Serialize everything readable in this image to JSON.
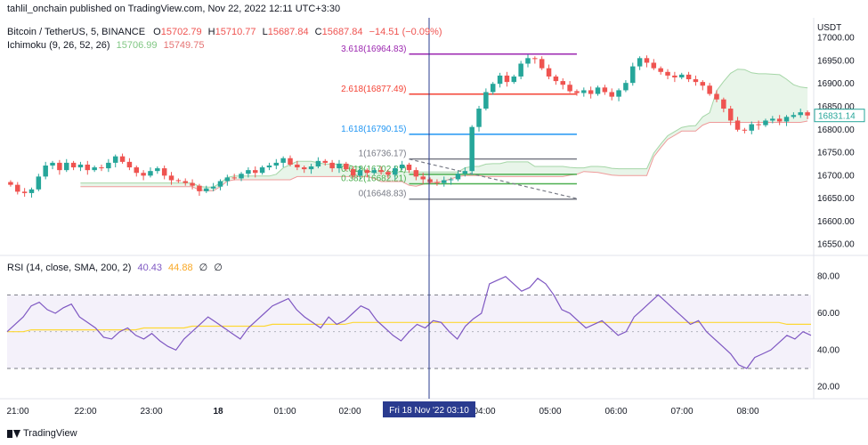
{
  "header": {
    "publisher": "tahlil_onchain published on TradingView.com, Nov 22, 2022 12:11 UTC+3:30",
    "symbol": "Bitcoin / TetherUS, 5, BINANCE",
    "o_label": "O",
    "o": "15702.79",
    "h_label": "H",
    "h": "15710.77",
    "l_label": "L",
    "l": "15687.84",
    "c_label": "C",
    "c": "15687.84",
    "change": "−14.51 (−0.09%)",
    "ichimoku_label": "Ichimoku (9, 26, 52, 26)",
    "ichimoku_v1": "15706.99",
    "ichimoku_v2": "15749.75",
    "rsi_label": "RSI (14, close, SMA, 200, 2)",
    "rsi_v1": "40.43",
    "rsi_v2": "44.88",
    "rsi_v3": "∅",
    "rsi_v4": "∅"
  },
  "footer": {
    "brand": "TradingView"
  },
  "colors": {
    "up": "#26a69a",
    "down": "#ef5350",
    "cloud": "#e8f5e9",
    "rsi": "#7e57c2",
    "rsi_ma": "#fdd835",
    "crosshair": "#2a3b8f"
  },
  "chart_data": {
    "type": "candlestick",
    "price_axis": {
      "unit": "USDT",
      "ylim": [
        16530,
        17040
      ],
      "ticks": [
        17000,
        16950,
        16900,
        16850,
        16800,
        16750,
        16700,
        16650,
        16600,
        16550
      ],
      "tick_labels": [
        "17000.00",
        "16950.00",
        "16900.00",
        "16850.00",
        "16800.00",
        "16750.00",
        "16700.00",
        "16650.00",
        "16600.00",
        "16550.00"
      ]
    },
    "time_axis": {
      "labels": [
        "21:00",
        "22:00",
        "23:00",
        "18",
        "01:00",
        "02:00",
        "04:00",
        "05:00",
        "06:00",
        "07:00",
        "08:00"
      ]
    },
    "crosshair_label": "Fri 18 Nov '22   03:10",
    "last_price": "16831.14",
    "candles_close": [
      16680,
      16665,
      16662,
      16670,
      16698,
      16722,
      16728,
      16712,
      16728,
      16718,
      16724,
      16712,
      16718,
      16716,
      16728,
      16742,
      16730,
      16718,
      16706,
      16700,
      16710,
      16716,
      16700,
      16690,
      16688,
      16684,
      16678,
      16666,
      16672,
      16676,
      16688,
      16696,
      16694,
      16704,
      16712,
      16706,
      16718,
      16722,
      16728,
      16738,
      16724,
      16718,
      16714,
      16720,
      16732,
      16728,
      16716,
      16726,
      16714,
      16700,
      16712,
      16706,
      16712,
      16708,
      16702,
      16716,
      16724,
      16712,
      16698,
      16692,
      16686,
      16684,
      16690,
      16692,
      16704,
      16710,
      16806,
      16846,
      16882,
      16900,
      16918,
      16904,
      16916,
      16944,
      16956,
      16954,
      16934,
      16916,
      16906,
      16898,
      16884,
      16880,
      16886,
      16878,
      16892,
      16882,
      16872,
      16886,
      16902,
      16938,
      16956,
      16946,
      16934,
      16926,
      16918,
      16914,
      16920,
      16910,
      16904,
      16896,
      16878,
      16866,
      16846,
      16820,
      16800,
      16798,
      16812,
      16810,
      16820,
      16824,
      16818,
      16828,
      16832,
      16838,
      16831
    ],
    "fib_levels": [
      {
        "label": "3.618(16964.83)",
        "value": 16964.83,
        "color": "#9c27b0"
      },
      {
        "label": "2.618(16877.49)",
        "value": 16877.49,
        "color": "#f44336"
      },
      {
        "label": "1.618(16790.15)",
        "value": 16790.15,
        "color": "#2196f3"
      },
      {
        "label": "1(16736.17)",
        "value": 16736.17,
        "color": "#787b86"
      },
      {
        "label": "0.618(16702.81)",
        "value": 16702.81,
        "color": "#4caf50"
      },
      {
        "label": "0.382(16682.21)",
        "value": 16682.21,
        "color": "#4caf50"
      },
      {
        "label": "0(16648.83)",
        "value": 16648.83,
        "color": "#787b86"
      }
    ],
    "rsi": {
      "ylim": [
        15,
        90
      ],
      "ticks": [
        80,
        60,
        40,
        20
      ],
      "tick_labels": [
        "80.00",
        "60.00",
        "40.00",
        "20.00"
      ],
      "bands": [
        70,
        30
      ],
      "values": [
        50,
        54,
        58,
        64,
        66,
        62,
        60,
        63,
        65,
        58,
        55,
        52,
        47,
        46,
        50,
        52,
        48,
        46,
        49,
        45,
        42,
        40,
        46,
        50,
        54,
        58,
        55,
        52,
        49,
        46,
        52,
        56,
        60,
        64,
        66,
        68,
        62,
        58,
        55,
        52,
        58,
        54,
        56,
        60,
        64,
        62,
        56,
        52,
        48,
        45,
        50,
        54,
        52,
        56,
        55,
        50,
        46,
        53,
        57,
        60,
        76,
        78,
        80,
        76,
        72,
        74,
        79,
        76,
        70,
        62,
        60,
        56,
        52,
        54,
        56,
        52,
        48,
        50,
        58,
        62,
        66,
        70,
        66,
        62,
        58,
        54,
        56,
        50,
        46,
        42,
        38,
        32,
        30,
        36,
        38,
        40,
        44,
        48,
        46,
        50,
        48
      ],
      "ma": [
        50,
        50,
        50,
        51,
        51,
        51,
        51,
        51,
        51,
        51,
        51,
        51,
        51,
        51,
        51,
        51,
        51,
        52,
        52,
        52,
        52,
        52,
        52,
        53,
        53,
        53,
        53,
        53,
        53,
        53,
        53,
        53,
        53,
        54,
        54,
        54,
        54,
        54,
        54,
        54,
        54,
        54,
        54,
        55,
        55,
        55,
        55,
        55,
        55,
        55,
        55,
        55,
        55,
        55,
        55,
        55,
        55,
        55,
        55,
        55,
        55,
        55,
        55,
        55,
        55,
        55,
        55,
        55,
        55,
        55,
        55,
        55,
        55,
        55,
        55,
        55,
        55,
        55,
        55,
        55,
        55,
        55,
        55,
        55,
        55,
        55,
        55,
        55,
        55,
        55,
        55,
        55,
        55,
        55,
        55,
        55,
        55,
        54,
        54,
        54,
        54
      ]
    }
  }
}
